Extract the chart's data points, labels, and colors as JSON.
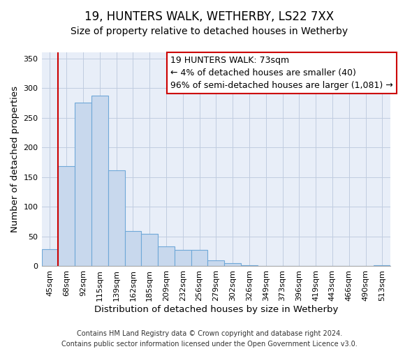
{
  "title": "19, HUNTERS WALK, WETHERBY, LS22 7XX",
  "subtitle": "Size of property relative to detached houses in Wetherby",
  "xlabel": "Distribution of detached houses by size in Wetherby",
  "ylabel": "Number of detached properties",
  "footer_line1": "Contains HM Land Registry data © Crown copyright and database right 2024.",
  "footer_line2": "Contains public sector information licensed under the Open Government Licence v3.0.",
  "bar_labels": [
    "45sqm",
    "68sqm",
    "92sqm",
    "115sqm",
    "139sqm",
    "162sqm",
    "185sqm",
    "209sqm",
    "232sqm",
    "256sqm",
    "279sqm",
    "302sqm",
    "326sqm",
    "349sqm",
    "373sqm",
    "396sqm",
    "419sqm",
    "443sqm",
    "466sqm",
    "490sqm",
    "513sqm"
  ],
  "bar_values": [
    29,
    169,
    275,
    287,
    161,
    59,
    54,
    33,
    27,
    27,
    10,
    5,
    2,
    1,
    0,
    0,
    1,
    0,
    0,
    0,
    2
  ],
  "bar_color": "#c8d8ed",
  "bar_edge_color": "#6fa8d8",
  "property_line_color": "#cc0000",
  "annotation_text": "19 HUNTERS WALK: 73sqm\n← 4% of detached houses are smaller (40)\n96% of semi-detached houses are larger (1,081) →",
  "annotation_box_color": "#ffffff",
  "annotation_box_edge": "#cc0000",
  "plot_bg_color": "#e8eef8",
  "grid_color": "#c0cce0",
  "ylim": [
    0,
    360
  ],
  "yticks": [
    0,
    50,
    100,
    150,
    200,
    250,
    300,
    350
  ],
  "title_fontsize": 12,
  "subtitle_fontsize": 10,
  "axis_label_fontsize": 9.5,
  "tick_fontsize": 8,
  "annotation_fontsize": 9,
  "footer_fontsize": 7
}
